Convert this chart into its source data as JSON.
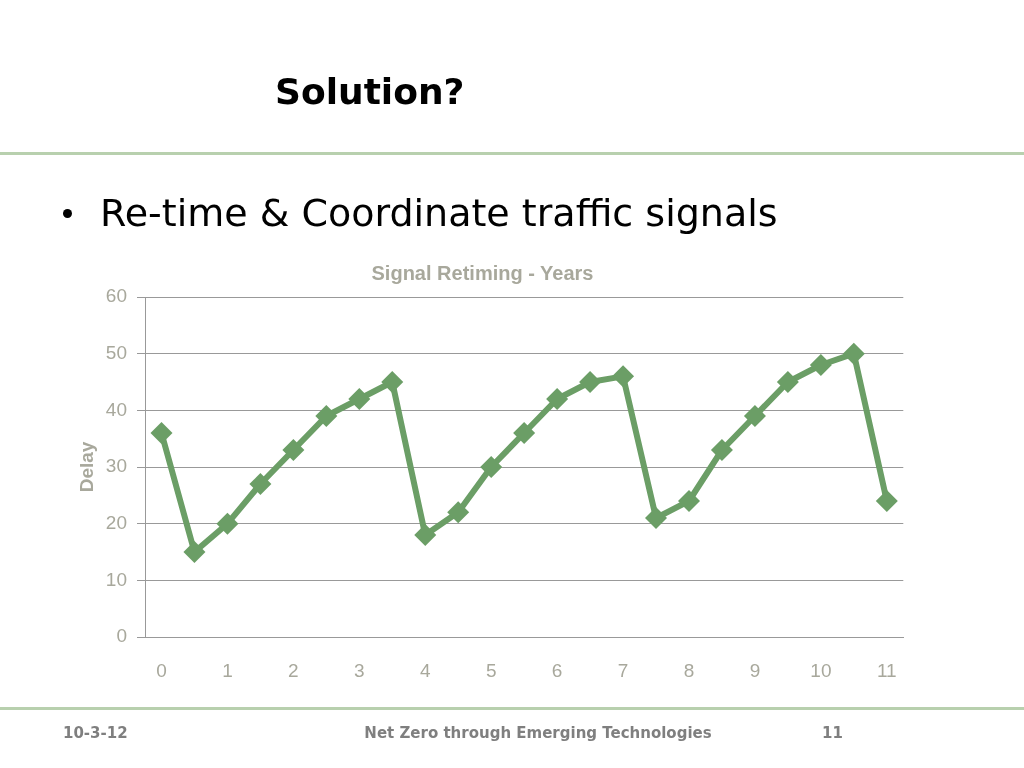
{
  "chart_data": {
    "type": "line",
    "title": "Signal Retiming - Years",
    "ylabel": "Delay",
    "annotations": [
      "Solution?",
      "Re-time & Coordinate traffic signals",
      "10-3-12",
      "Net Zero through Emerging Technologies",
      "11"
    ],
    "categories": [
      "0",
      null,
      "1",
      null,
      "2",
      null,
      "3",
      null,
      "4",
      null,
      "5",
      null,
      "6",
      null,
      "7",
      null,
      "8",
      null,
      "9",
      null,
      "10",
      null,
      "11"
    ],
    "series": [
      {
        "color": "#6b9e66",
        "values": [
          36,
          15,
          20,
          27,
          33,
          39,
          42,
          45,
          18,
          22,
          30,
          36,
          42,
          45,
          46,
          21,
          24,
          33,
          39,
          45,
          48,
          50,
          24
        ]
      }
    ],
    "ylim": [
      0,
      60
    ],
    "yticks": [
      0,
      10,
      20,
      30,
      40,
      50,
      60
    ],
    "grid": "y",
    "marker": "diamond",
    "line_style": "solid"
  }
}
